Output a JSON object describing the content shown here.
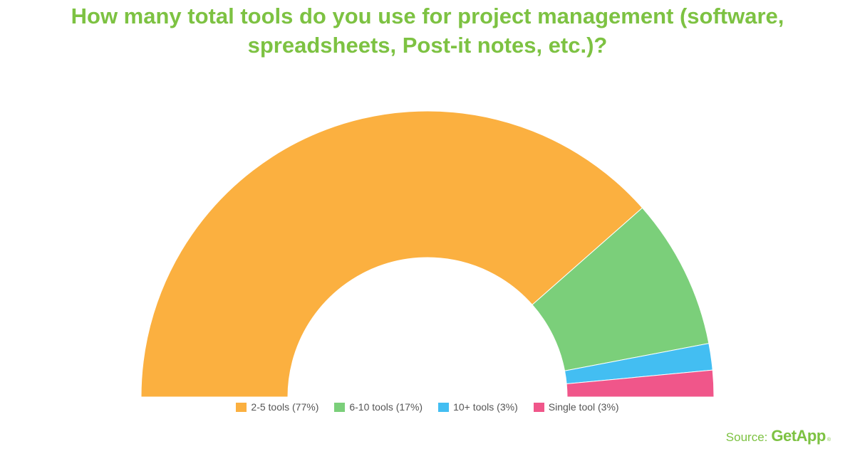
{
  "colors": {
    "title": "#7dc242",
    "source": "#7dc242"
  },
  "chart_data": {
    "type": "pie",
    "subtype": "semicircle-donut",
    "title": "How many total tools do you use for project management (software, spreadsheets, Post-it notes, etc.)?",
    "legend_position": "bottom-center",
    "series": [
      {
        "label": "2-5 tools",
        "legend": "2-5 tools (77%)",
        "value": 77,
        "color": "#fbb040"
      },
      {
        "label": "6-10 tools",
        "legend": "6-10 tools (17%)",
        "value": 17,
        "color": "#7bcf7a"
      },
      {
        "label": "10+ tools",
        "legend": "10+ tools (3%)",
        "value": 3,
        "color": "#43bef2"
      },
      {
        "label": "Single tool",
        "legend": "Single tool (3%)",
        "value": 3,
        "color": "#f0568a"
      }
    ]
  },
  "source": {
    "label": "Source:",
    "brand": "GetApp",
    "registered": "®"
  }
}
